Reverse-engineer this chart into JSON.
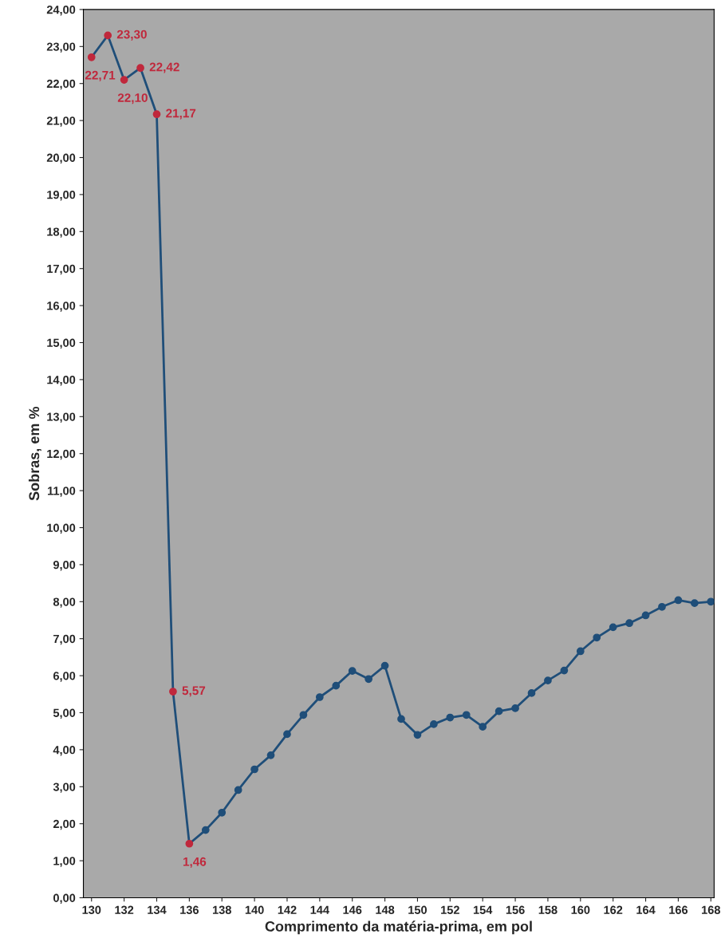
{
  "chart_data": {
    "type": "line",
    "xlabel": "Comprimento da matéria-prima, em pol",
    "ylabel": "Sobras, em %",
    "x": [
      130,
      131,
      132,
      133,
      134,
      135,
      136,
      137,
      138,
      139,
      140,
      141,
      142,
      143,
      144,
      145,
      146,
      147,
      148,
      149,
      150,
      151,
      152,
      153,
      154,
      155,
      156,
      157,
      158,
      159,
      160,
      161,
      162,
      163,
      164,
      165,
      166,
      167,
      168
    ],
    "series": [
      {
        "color": "#1f4e79",
        "values": [
          22.71,
          23.3,
          22.1,
          22.42,
          21.17,
          5.57,
          1.46,
          1.83,
          2.3,
          2.91,
          3.47,
          3.85,
          4.42,
          4.94,
          5.42,
          5.73,
          6.13,
          5.91,
          6.27,
          4.83,
          4.4,
          4.69,
          4.87,
          4.94,
          4.62,
          5.04,
          5.12,
          5.53,
          5.87,
          6.14,
          6.66,
          7.03,
          7.31,
          7.42,
          7.63,
          7.86,
          8.04,
          7.96,
          8.0
        ],
        "colors": [
          "#c0283c",
          "#c0283c",
          "#c0283c",
          "#c0283c",
          "#c0283c",
          "#c0283c",
          "#c0283c",
          "#1f4e79",
          "#1f4e79",
          "#1f4e79",
          "#1f4e79",
          "#1f4e79",
          "#1f4e79",
          "#1f4e79",
          "#1f4e79",
          "#1f4e79",
          "#1f4e79",
          "#1f4e79",
          "#1f4e79",
          "#1f4e79",
          "#1f4e79",
          "#1f4e79",
          "#1f4e79",
          "#1f4e79",
          "#1f4e79",
          "#1f4e79",
          "#1f4e79",
          "#1f4e79",
          "#1f4e79",
          "#1f4e79",
          "#1f4e79",
          "#1f4e79",
          "#1f4e79",
          "#1f4e79",
          "#1f4e79",
          "#1f4e79",
          "#1f4e79",
          "#1f4e79",
          "#1f4e79"
        ],
        "value_labels": [
          "22,71",
          "23,30",
          "22,10",
          "22,42",
          "21,17",
          "5,57",
          "1,46",
          null,
          null,
          null,
          null,
          null,
          null,
          null,
          null,
          null,
          null,
          null,
          null,
          null,
          null,
          null,
          null,
          null,
          null,
          null,
          null,
          null,
          null,
          null,
          null,
          null,
          null,
          null,
          null,
          null,
          null,
          null,
          null
        ]
      }
    ],
    "marker": "circle",
    "line_style": "solid",
    "xlim": [
      129.5,
      168.2
    ],
    "xticks": [
      130,
      132,
      134,
      136,
      138,
      140,
      142,
      144,
      146,
      148,
      150,
      152,
      154,
      156,
      158,
      160,
      162,
      164,
      166,
      168
    ],
    "ylim": [
      0,
      24
    ],
    "yticks": [
      {
        "value": 0,
        "label": "0,00"
      },
      {
        "value": 1,
        "label": "1,00"
      },
      {
        "value": 2,
        "label": "2,00"
      },
      {
        "value": 3,
        "label": "3,00"
      },
      {
        "value": 4,
        "label": "4,00"
      },
      {
        "value": 5,
        "label": "5,00"
      },
      {
        "value": 6,
        "label": "6,00"
      },
      {
        "value": 7,
        "label": "7,00"
      },
      {
        "value": 8,
        "label": "8,00"
      },
      {
        "value": 9,
        "label": "9,00"
      },
      {
        "value": 10,
        "label": "10,00"
      },
      {
        "value": 11,
        "label": "11,00"
      },
      {
        "value": 12,
        "label": "12,00"
      },
      {
        "value": 13,
        "label": "13,00"
      },
      {
        "value": 14,
        "label": "14,00"
      },
      {
        "value": 15,
        "label": "15,00"
      },
      {
        "value": 16,
        "label": "16,00"
      },
      {
        "value": 17,
        "label": "17,00"
      },
      {
        "value": 18,
        "label": "18,00"
      },
      {
        "value": 19,
        "label": "19,00"
      },
      {
        "value": 20,
        "label": "20,00"
      },
      {
        "value": 21,
        "label": "21,00"
      },
      {
        "value": 22,
        "label": "22,00"
      },
      {
        "value": 23,
        "label": "23,00"
      },
      {
        "value": 24,
        "label": "24,00"
      }
    ],
    "grid": false,
    "legend": false
  }
}
